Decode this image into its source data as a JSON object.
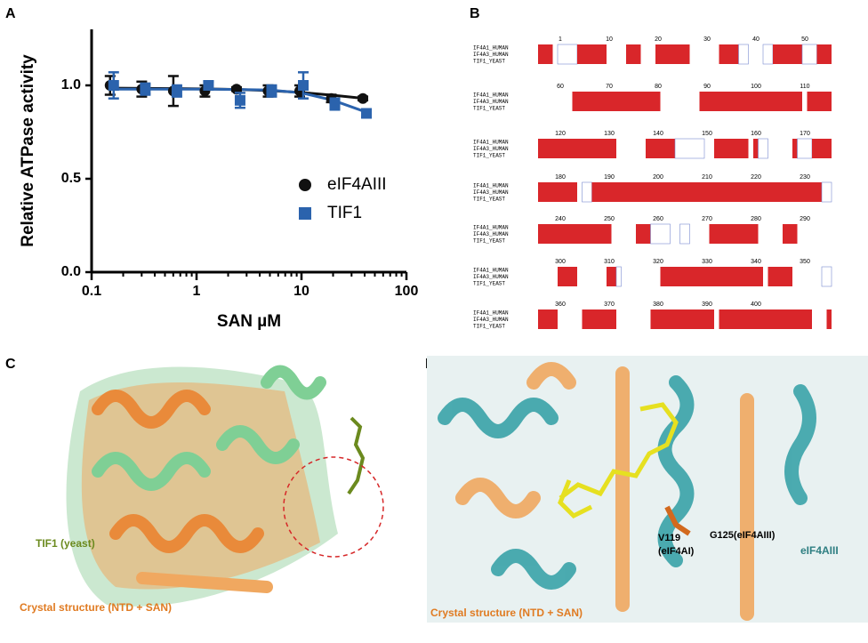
{
  "panels": {
    "a": "A",
    "b": "B",
    "c": "C",
    "d": "D"
  },
  "chart_data": {
    "type": "scatter",
    "xlabel": "SAN µM",
    "ylabel": "Relative ATPase activity",
    "x": [
      0.156,
      0.3125,
      0.625,
      1.25,
      2.5,
      5,
      10,
      20,
      40
    ],
    "series": [
      {
        "name": "eIF4AIII",
        "color": "#111111",
        "marker": "circle",
        "values": [
          1.0,
          0.98,
          0.97,
          0.97,
          0.98,
          0.97,
          0.97,
          0.93,
          0.93
        ],
        "errors": [
          0.05,
          0.04,
          0.08,
          0.03,
          0.01,
          0.03,
          0.03,
          0.02,
          0.01
        ],
        "fit": [
          0.985,
          0.984,
          0.983,
          0.981,
          0.978,
          0.972,
          0.962,
          0.947,
          0.93
        ]
      },
      {
        "name": "TIF1",
        "color": "#2b63ad",
        "marker": "square",
        "values": [
          1.0,
          0.98,
          0.97,
          1.0,
          0.92,
          0.97,
          1.0,
          0.9,
          0.85
        ],
        "errors": [
          0.07,
          0.03,
          0.03,
          0.02,
          0.04,
          0.03,
          0.07,
          0.03,
          0.02
        ],
        "fit": [
          0.98,
          0.98,
          0.98,
          0.98,
          0.978,
          0.975,
          0.96,
          0.92,
          0.86
        ]
      }
    ],
    "xlim": [
      0.1,
      100
    ],
    "xscale": "log",
    "xticks": [
      0.1,
      1,
      10,
      100
    ],
    "ylim": [
      0,
      1.3
    ],
    "yticks": [
      {
        "value": 0,
        "label": "0.0"
      },
      {
        "value": 0.5,
        "label": "0.5"
      },
      {
        "value": 1,
        "label": "1.0"
      }
    ]
  },
  "alignment": {
    "names": [
      "IF4A1_HUMAN",
      "IF4A3_HUMAN",
      "TIF1_YEAST"
    ],
    "rulers": [
      [
        1,
        10,
        20,
        30,
        40,
        50
      ],
      [
        60,
        70,
        80,
        90,
        100,
        110
      ],
      [
        120,
        130,
        140,
        150,
        160,
        170
      ],
      [
        180,
        190,
        200,
        210,
        220,
        230
      ],
      [
        240,
        250,
        260,
        270,
        280,
        290
      ],
      [
        300,
        310,
        320,
        330,
        340,
        350
      ],
      [
        360,
        370,
        380,
        390,
        400
      ]
    ]
  },
  "structure_c": {
    "label_tif1": "TIF1 (yeast)",
    "label_crystal": "Crystal structure (NTD + SAN)"
  },
  "structure_d": {
    "label_v119": "V119",
    "label_v119_sub": "(eIF4AI)",
    "label_g125": "G125(eIF4AIII)",
    "label_eif4aiii": "eIF4AIII",
    "label_crystal": "Crystal structure (NTD + SAN)"
  }
}
